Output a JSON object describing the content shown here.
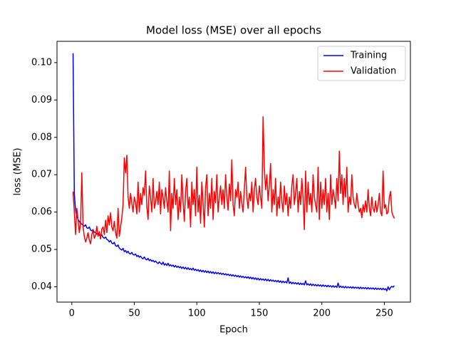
{
  "chart_data": {
    "type": "line",
    "title": "Model loss (MSE) over all epochs",
    "x_label": "Epoch",
    "y_label": "loss (MSE)",
    "xlim": [
      -11.85,
      270.85
    ],
    "ylim": [
      0.0359,
      0.1057
    ],
    "xticks": [
      0,
      50,
      100,
      150,
      200,
      250
    ],
    "yticks": [
      0.04,
      0.05,
      0.06,
      0.07,
      0.08,
      0.09,
      {
        "value": 0.1,
        "label": "0.10"
      }
    ],
    "grid": false,
    "legend_position": "upper right",
    "x": [
      1,
      2,
      3,
      4,
      5,
      6,
      7,
      8,
      9,
      10,
      11,
      12,
      13,
      14,
      15,
      16,
      17,
      18,
      19,
      20,
      21,
      22,
      23,
      24,
      25,
      26,
      27,
      28,
      29,
      30,
      31,
      32,
      33,
      34,
      35,
      36,
      37,
      38,
      39,
      40,
      41,
      42,
      43,
      44,
      45,
      46,
      47,
      48,
      49,
      50,
      51,
      52,
      53,
      54,
      55,
      56,
      57,
      58,
      59,
      60,
      61,
      62,
      63,
      64,
      65,
      66,
      67,
      68,
      69,
      70,
      71,
      72,
      73,
      74,
      75,
      76,
      77,
      78,
      79,
      80,
      81,
      82,
      83,
      84,
      85,
      86,
      87,
      88,
      89,
      90,
      91,
      92,
      93,
      94,
      95,
      96,
      97,
      98,
      99,
      100,
      101,
      102,
      103,
      104,
      105,
      106,
      107,
      108,
      109,
      110,
      111,
      112,
      113,
      114,
      115,
      116,
      117,
      118,
      119,
      120,
      121,
      122,
      123,
      124,
      125,
      126,
      127,
      128,
      129,
      130,
      131,
      132,
      133,
      134,
      135,
      136,
      137,
      138,
      139,
      140,
      141,
      142,
      143,
      144,
      145,
      146,
      147,
      148,
      149,
      150,
      151,
      152,
      153,
      154,
      155,
      156,
      157,
      158,
      159,
      160,
      161,
      162,
      163,
      164,
      165,
      166,
      167,
      168,
      169,
      170,
      171,
      172,
      173,
      174,
      175,
      176,
      177,
      178,
      179,
      180,
      181,
      182,
      183,
      184,
      185,
      186,
      187,
      188,
      189,
      190,
      191,
      192,
      193,
      194,
      195,
      196,
      197,
      198,
      199,
      200,
      201,
      202,
      203,
      204,
      205,
      206,
      207,
      208,
      209,
      210,
      211,
      212,
      213,
      214,
      215,
      216,
      217,
      218,
      219,
      220,
      221,
      222,
      223,
      224,
      225,
      226,
      227,
      228,
      229,
      230,
      231,
      232,
      233,
      234,
      235,
      236,
      237,
      238,
      239,
      240,
      241,
      242,
      243,
      244,
      245,
      246,
      247,
      248,
      249,
      250,
      251,
      252,
      253,
      254,
      255,
      256,
      257,
      258
    ],
    "series": [
      {
        "name": "Training",
        "color": "#0000ff",
        "values": [
          0.1025,
          0.065,
          0.0605,
          0.059,
          0.058,
          0.0575,
          0.057,
          0.0568,
          0.0565,
          0.0562,
          0.0566,
          0.0558,
          0.0556,
          0.056,
          0.0552,
          0.055,
          0.0553,
          0.0546,
          0.0545,
          0.0541,
          0.0543,
          0.0538,
          0.0536,
          0.0539,
          0.0532,
          0.053,
          0.0533,
          0.0527,
          0.0525,
          0.052,
          0.0524,
          0.0517,
          0.0515,
          0.0519,
          0.051,
          0.0508,
          0.0512,
          0.0503,
          0.0501,
          0.0498,
          0.0503,
          0.0494,
          0.0497,
          0.0491,
          0.0495,
          0.0489,
          0.0488,
          0.0492,
          0.0486,
          0.0485,
          0.0488,
          0.0481,
          0.0484,
          0.0479,
          0.0482,
          0.0477,
          0.0475,
          0.048,
          0.0474,
          0.0472,
          0.0476,
          0.047,
          0.0473,
          0.0468,
          0.0471,
          0.0466,
          0.0469,
          0.0465,
          0.0462,
          0.0467,
          0.0463,
          0.046,
          0.0466,
          0.0458,
          0.0462,
          0.0457,
          0.0463,
          0.0456,
          0.0459,
          0.0455,
          0.0458,
          0.0453,
          0.0457,
          0.0452,
          0.0455,
          0.0451,
          0.0454,
          0.0449,
          0.0453,
          0.0448,
          0.0452,
          0.0447,
          0.0451,
          0.0446,
          0.0449,
          0.0445,
          0.045,
          0.0444,
          0.0447,
          0.0443,
          0.0446,
          0.0441,
          0.0445,
          0.044,
          0.0444,
          0.0439,
          0.0443,
          0.0438,
          0.0442,
          0.0437,
          0.0441,
          0.0436,
          0.044,
          0.0435,
          0.0439,
          0.0435,
          0.0438,
          0.0434,
          0.0437,
          0.0433,
          0.0436,
          0.0432,
          0.0435,
          0.0431,
          0.0434,
          0.043,
          0.0433,
          0.0429,
          0.0432,
          0.0428,
          0.0431,
          0.0427,
          0.043,
          0.0426,
          0.0429,
          0.0425,
          0.0428,
          0.0424,
          0.0427,
          0.0423,
          0.0427,
          0.0422,
          0.0426,
          0.0421,
          0.0425,
          0.042,
          0.0424,
          0.0419,
          0.0423,
          0.0418,
          0.0422,
          0.0418,
          0.0421,
          0.0417,
          0.0421,
          0.0416,
          0.042,
          0.0415,
          0.0419,
          0.0415,
          0.0418,
          0.0414,
          0.0417,
          0.0413,
          0.0417,
          0.0412,
          0.0416,
          0.0411,
          0.0415,
          0.0411,
          0.0414,
          0.041,
          0.0424,
          0.0409,
          0.0413,
          0.0408,
          0.0412,
          0.0408,
          0.0411,
          0.0407,
          0.0411,
          0.0406,
          0.041,
          0.0406,
          0.0409,
          0.0405,
          0.0416,
          0.0405,
          0.0408,
          0.0404,
          0.0408,
          0.0403,
          0.0407,
          0.0403,
          0.0406,
          0.0402,
          0.0406,
          0.0402,
          0.0405,
          0.0401,
          0.0405,
          0.0401,
          0.0404,
          0.04,
          0.0404,
          0.04,
          0.0403,
          0.0399,
          0.0403,
          0.0399,
          0.0402,
          0.0398,
          0.041,
          0.0398,
          0.0402,
          0.0398,
          0.0401,
          0.0397,
          0.0401,
          0.0397,
          0.04,
          0.0397,
          0.04,
          0.0396,
          0.04,
          0.0396,
          0.0399,
          0.0396,
          0.0399,
          0.0395,
          0.0399,
          0.0395,
          0.0398,
          0.0395,
          0.0398,
          0.0394,
          0.0398,
          0.0394,
          0.0397,
          0.0394,
          0.0397,
          0.0393,
          0.0397,
          0.0393,
          0.0396,
          0.0393,
          0.0396,
          0.0392,
          0.0396,
          0.0392,
          0.0395,
          0.0389,
          0.04,
          0.0392,
          0.0398,
          0.0401,
          0.0399,
          0.0403
        ]
      },
      {
        "name": "Validation",
        "color": "#ff0000",
        "values": [
          0.0655,
          0.06,
          0.054,
          0.061,
          0.058,
          0.0545,
          0.057,
          0.0705,
          0.056,
          0.0535,
          0.052,
          0.053,
          0.0545,
          0.0525,
          0.0515,
          0.054,
          0.0552,
          0.053,
          0.0538,
          0.0562,
          0.0535,
          0.0548,
          0.0528,
          0.0555,
          0.056,
          0.054,
          0.0578,
          0.0545,
          0.059,
          0.0565,
          0.0598,
          0.056,
          0.055,
          0.0575,
          0.0545,
          0.053,
          0.061,
          0.0535,
          0.056,
          0.0585,
          0.062,
          0.0745,
          0.0705,
          0.0752,
          0.064,
          0.061,
          0.065,
          0.0625,
          0.06,
          0.064,
          0.0625,
          0.0595,
          0.068,
          0.06,
          0.065,
          0.062,
          0.0665,
          0.0645,
          0.071,
          0.0615,
          0.058,
          0.067,
          0.064,
          0.06,
          0.069,
          0.061,
          0.0625,
          0.0655,
          0.062,
          0.068,
          0.0595,
          0.066,
          0.064,
          0.061,
          0.0665,
          0.063,
          0.06,
          0.071,
          0.055,
          0.065,
          0.061,
          0.069,
          0.062,
          0.066,
          0.058,
          0.064,
          0.06,
          0.07,
          0.063,
          0.0575,
          0.0655,
          0.069,
          0.061,
          0.064,
          0.056,
          0.068,
          0.062,
          0.066,
          0.059,
          0.072,
          0.06,
          0.0645,
          0.057,
          0.068,
          0.0625,
          0.056,
          0.0665,
          0.07,
          0.059,
          0.065,
          0.061,
          0.069,
          0.058,
          0.0655,
          0.0625,
          0.07,
          0.06,
          0.064,
          0.067,
          0.062,
          0.066,
          0.061,
          0.07,
          0.064,
          0.0605,
          0.0675,
          0.063,
          0.074,
          0.062,
          0.059,
          0.066,
          0.064,
          0.068,
          0.061,
          0.0655,
          0.0625,
          0.06,
          0.066,
          0.072,
          0.064,
          0.061,
          0.065,
          0.063,
          0.068,
          0.06,
          0.066,
          0.069,
          0.064,
          0.062,
          0.067,
          0.064,
          0.061,
          0.0855,
          0.072,
          0.066,
          0.07,
          0.063,
          0.067,
          0.073,
          0.06,
          0.066,
          0.062,
          0.069,
          0.059,
          0.064,
          0.061,
          0.068,
          0.063,
          0.06,
          0.067,
          0.062,
          0.065,
          0.059,
          0.064,
          0.061,
          0.067,
          0.07,
          0.062,
          0.065,
          0.069,
          0.06,
          0.0655,
          0.062,
          0.069,
          0.064,
          0.0553,
          0.071,
          0.06,
          0.068,
          0.062,
          0.065,
          0.06,
          0.07,
          0.064,
          0.062,
          0.06,
          0.072,
          0.058,
          0.068,
          0.061,
          0.066,
          0.062,
          0.069,
          0.06,
          0.065,
          0.058,
          0.07,
          0.062,
          0.066,
          0.064,
          0.061,
          0.069,
          0.063,
          0.0763,
          0.065,
          0.07,
          0.062,
          0.069,
          0.064,
          0.072,
          0.06,
          0.064,
          0.062,
          0.07,
          0.064,
          0.062,
          0.061,
          0.065,
          0.062,
          0.06,
          0.061,
          0.0585,
          0.062,
          0.06,
          0.063,
          0.06,
          0.066,
          0.061,
          0.059,
          0.064,
          0.061,
          0.06,
          0.063,
          0.06,
          0.062,
          0.065,
          0.06,
          0.059,
          0.071,
          0.061,
          0.062,
          0.0595,
          0.06,
          0.064,
          0.0655,
          0.06,
          0.059,
          0.0583
        ]
      }
    ]
  }
}
